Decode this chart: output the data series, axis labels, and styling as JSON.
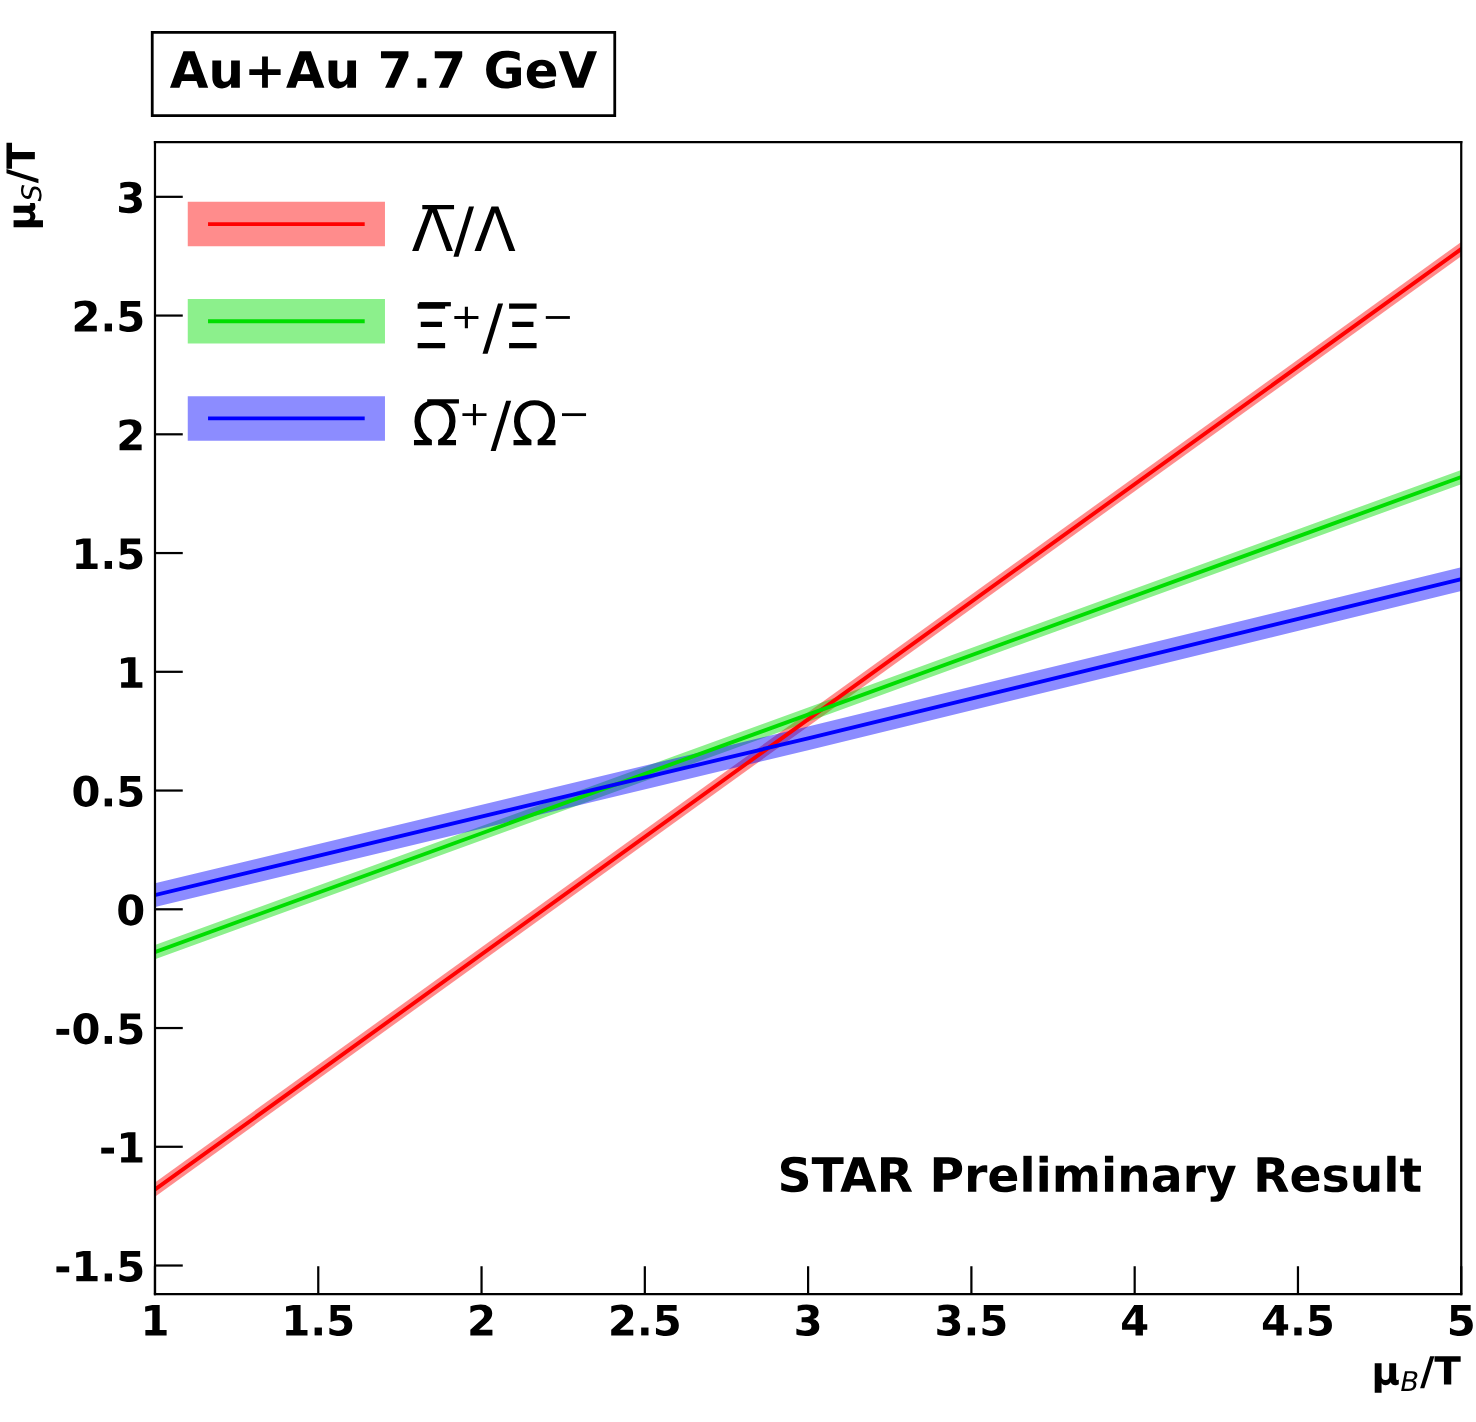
{
  "chart_data": {
    "type": "line",
    "title": "Au+Au 7.7 GeV",
    "xlabel": "μ$_{B}$/T",
    "ylabel": "μ$_{S}$/T",
    "x": [
      1,
      3,
      5
    ],
    "series": [
      {
        "name": "Λ̅/Λ",
        "color": "#ff0000",
        "values": [
          -1.18,
          0.8,
          2.78
        ],
        "lower": [
          -1.21,
          0.77,
          2.75
        ],
        "upper": [
          -1.15,
          0.83,
          2.81
        ]
      },
      {
        "name": "Ξ̅⁺/Ξ⁻",
        "color": "#00dd00",
        "values": [
          -0.18,
          0.82,
          1.82
        ],
        "lower": [
          -0.21,
          0.79,
          1.79
        ],
        "upper": [
          -0.15,
          0.85,
          1.85
        ]
      },
      {
        "name": "Ω̅⁺/Ω⁻",
        "color": "#0000ff",
        "values": [
          0.06,
          0.72,
          1.39
        ],
        "lower": [
          0.01,
          0.67,
          1.34
        ],
        "upper": [
          0.11,
          0.77,
          1.44
        ]
      }
    ],
    "xlim": [
      1,
      5
    ],
    "xticks": [
      1,
      1.5,
      2,
      2.5,
      3,
      3.5,
      4,
      4.5,
      5
    ],
    "ylim": [
      -1.62,
      3.23
    ],
    "yticks": [
      -1.5,
      -1,
      -0.5,
      0,
      0.5,
      1,
      1.5,
      2,
      2.5,
      3
    ],
    "annotations": [
      "STAR Preliminary Result"
    ],
    "legend": "top left",
    "grid": false
  }
}
